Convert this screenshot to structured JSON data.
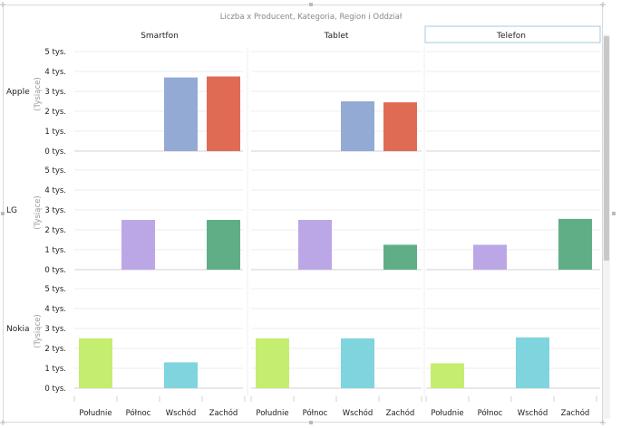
{
  "chart_data": {
    "type": "bar",
    "title": "Liczba x Producent, Kategoria, Region i Oddział",
    "columns": [
      "Smartfon",
      "Tablet",
      "Telefon"
    ],
    "rows": [
      "Apple",
      "LG",
      "Nokia"
    ],
    "categories": [
      "Południe",
      "Północ",
      "Wschód",
      "Zachód"
    ],
    "ylabel": "(Tysiące)",
    "ylim": [
      0,
      5
    ],
    "yticks": [
      0,
      1,
      2,
      3,
      4,
      5
    ],
    "tick_labels": [
      "0 tys.",
      "1 tys.",
      "2 tys.",
      "3 tys.",
      "4 tys.",
      "5 tys."
    ],
    "colors": [
      "#c5ed6f",
      "#bba7e6",
      "#7fd4de",
      "#5fae86",
      "#93aad4",
      "#e06b55"
    ],
    "bars": [
      {
        "row": "Apple",
        "column": "Smartfon",
        "category": "Wschód",
        "value": 3.7,
        "color": "#93aad4"
      },
      {
        "row": "Apple",
        "column": "Smartfon",
        "category": "Zachód",
        "value": 3.75,
        "color": "#e06b55"
      },
      {
        "row": "Apple",
        "column": "Tablet",
        "category": "Wschód",
        "value": 2.5,
        "color": "#93aad4"
      },
      {
        "row": "Apple",
        "column": "Tablet",
        "category": "Zachód",
        "value": 2.45,
        "color": "#e06b55"
      },
      {
        "row": "LG",
        "column": "Smartfon",
        "category": "Północ",
        "value": 2.5,
        "color": "#bba7e6"
      },
      {
        "row": "LG",
        "column": "Smartfon",
        "category": "Zachód",
        "value": 2.5,
        "color": "#5fae86"
      },
      {
        "row": "LG",
        "column": "Tablet",
        "category": "Północ",
        "value": 2.5,
        "color": "#bba7e6"
      },
      {
        "row": "LG",
        "column": "Tablet",
        "category": "Zachód",
        "value": 1.25,
        "color": "#5fae86"
      },
      {
        "row": "LG",
        "column": "Telefon",
        "category": "Północ",
        "value": 1.25,
        "color": "#bba7e6"
      },
      {
        "row": "LG",
        "column": "Telefon",
        "category": "Zachód",
        "value": 2.55,
        "color": "#5fae86"
      },
      {
        "row": "Nokia",
        "column": "Smartfon",
        "category": "Południe",
        "value": 2.5,
        "color": "#c5ed6f"
      },
      {
        "row": "Nokia",
        "column": "Smartfon",
        "category": "Wschód",
        "value": 1.3,
        "color": "#7fd4de"
      },
      {
        "row": "Nokia",
        "column": "Tablet",
        "category": "Południe",
        "value": 2.5,
        "color": "#c5ed6f"
      },
      {
        "row": "Nokia",
        "column": "Tablet",
        "category": "Wschód",
        "value": 2.5,
        "color": "#7fd4de"
      },
      {
        "row": "Nokia",
        "column": "Telefon",
        "category": "Południe",
        "value": 1.25,
        "color": "#c5ed6f"
      },
      {
        "row": "Nokia",
        "column": "Telefon",
        "category": "Wschód",
        "value": 2.55,
        "color": "#7fd4de"
      }
    ],
    "grid": true,
    "legend": "none"
  },
  "ui": {
    "selected_column": "Telefon",
    "frame_color": "#d9d9d9",
    "gridline_color": "#ececec",
    "highlight_border": "#a6c8e0"
  }
}
